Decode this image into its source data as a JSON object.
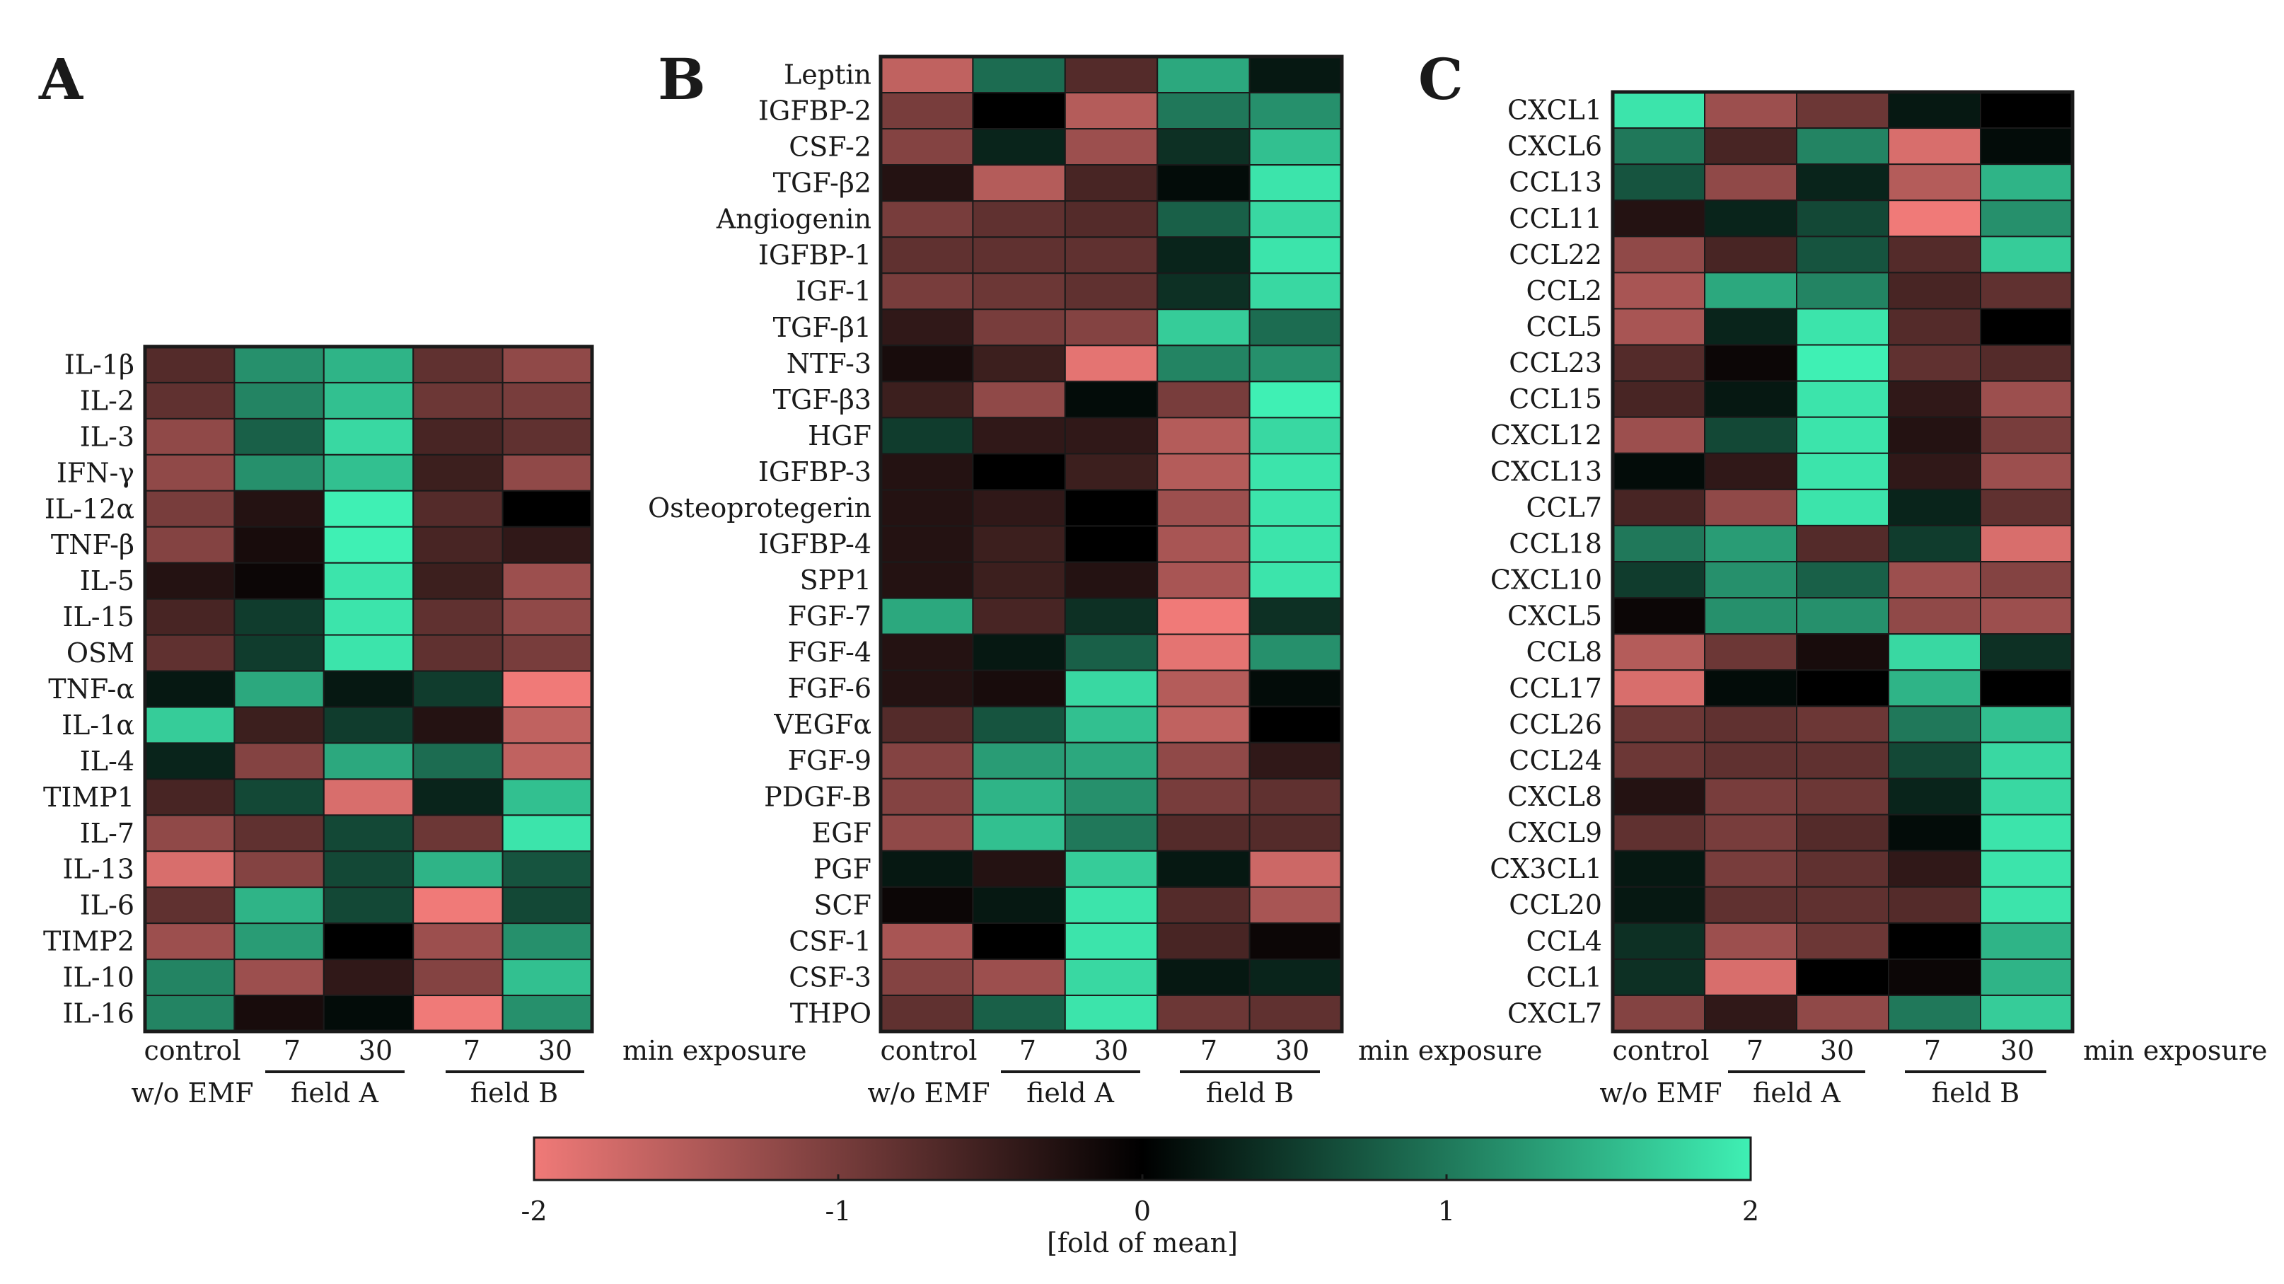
{
  "chart_data": [
    {
      "type": "heatmap",
      "panel": "A",
      "columns": [
        "control\nw/o EMF",
        "field A 7",
        "field A 30",
        "field B 7",
        "field B 30"
      ],
      "rows": [
        "IL-1β",
        "IL-2",
        "IL-3",
        "IFN-γ",
        "IL-12α",
        "TNF-β",
        "IL-5",
        "IL-15",
        "OSM",
        "TNF-α",
        "IL-1α",
        "IL-4",
        "TIMP1",
        "IL-7",
        "IL-13",
        "IL-6",
        "TIMP2",
        "IL-10",
        "IL-16"
      ],
      "values": [
        [
          -0.7,
          1.2,
          1.5,
          -0.8,
          -1.2
        ],
        [
          -0.8,
          1.1,
          1.6,
          -0.9,
          -1.0
        ],
        [
          -1.2,
          0.8,
          1.8,
          -0.6,
          -0.8
        ],
        [
          -1.2,
          1.2,
          1.6,
          -0.5,
          -1.2
        ],
        [
          -1.0,
          -0.3,
          2.0,
          -0.7,
          0.0
        ],
        [
          -1.1,
          -0.2,
          2.0,
          -0.6,
          -0.4
        ],
        [
          -0.3,
          -0.1,
          1.9,
          -0.5,
          -1.3
        ],
        [
          -0.6,
          0.5,
          1.9,
          -0.8,
          -1.2
        ],
        [
          -0.8,
          0.5,
          1.9,
          -0.8,
          -1.0
        ],
        [
          0.2,
          1.4,
          0.2,
          0.5,
          -2.0
        ],
        [
          1.7,
          -0.5,
          0.5,
          -0.3,
          -1.6
        ],
        [
          0.3,
          -1.1,
          1.4,
          0.9,
          -1.6
        ],
        [
          -0.6,
          0.6,
          -1.8,
          0.3,
          1.6
        ],
        [
          -1.2,
          -0.8,
          0.6,
          -0.9,
          1.9
        ],
        [
          -1.8,
          -1.1,
          0.6,
          1.5,
          0.7
        ],
        [
          -0.8,
          1.5,
          0.6,
          -2.0,
          0.6
        ],
        [
          -1.3,
          1.3,
          0.0,
          -1.3,
          1.2
        ],
        [
          1.1,
          -1.3,
          -0.4,
          -1.1,
          1.6
        ],
        [
          1.1,
          -0.2,
          0.1,
          -2.0,
          1.2
        ]
      ]
    },
    {
      "type": "heatmap",
      "panel": "B",
      "columns": [
        "control\nw/o EMF",
        "field A 7",
        "field A 30",
        "field B 7",
        "field B 30"
      ],
      "rows": [
        "Leptin",
        "IGFBP-2",
        "CSF-2",
        "TGF-β2",
        "Angiogenin",
        "IGFBP-1",
        "IGF-1",
        "TGF-β1",
        "NTF-3",
        "TGF-β3",
        "HGF",
        "IGFBP-3",
        "Osteoprotegerin",
        "IGFBP-4",
        "SPP1",
        "FGF-7",
        "FGF-4",
        "FGF-6",
        "VEGFα",
        "FGF-9",
        "PDGF-B",
        "EGF",
        "PGF",
        "SCF",
        "CSF-1",
        "CSF-3",
        "THPO"
      ],
      "values": [
        [
          -1.6,
          0.9,
          -0.7,
          1.4,
          0.2
        ],
        [
          -1.0,
          0.0,
          -1.5,
          1.0,
          1.2
        ],
        [
          -1.1,
          0.3,
          -1.3,
          0.4,
          1.6
        ],
        [
          -0.3,
          -1.5,
          -0.6,
          0.1,
          1.9
        ],
        [
          -1.0,
          -0.8,
          -0.7,
          0.8,
          1.8
        ],
        [
          -0.8,
          -0.8,
          -0.8,
          0.3,
          1.9
        ],
        [
          -1.0,
          -0.9,
          -0.8,
          0.4,
          1.8
        ],
        [
          -0.4,
          -1.0,
          -1.1,
          1.7,
          0.9
        ],
        [
          -0.2,
          -0.5,
          -1.9,
          1.1,
          1.2
        ],
        [
          -0.5,
          -1.2,
          0.1,
          -1.0,
          2.0
        ],
        [
          0.5,
          -0.4,
          -0.4,
          -1.5,
          1.8
        ],
        [
          -0.3,
          0.0,
          -0.5,
          -1.5,
          1.9
        ],
        [
          -0.3,
          -0.4,
          0.0,
          -1.3,
          1.9
        ],
        [
          -0.3,
          -0.5,
          0.0,
          -1.4,
          1.9
        ],
        [
          -0.3,
          -0.5,
          -0.3,
          -1.4,
          1.9
        ],
        [
          1.4,
          -0.6,
          0.4,
          -2.0,
          0.4
        ],
        [
          -0.3,
          0.2,
          0.8,
          -1.9,
          1.2
        ],
        [
          -0.3,
          -0.2,
          1.8,
          -1.5,
          0.1
        ],
        [
          -0.7,
          0.7,
          1.6,
          -1.6,
          0.0
        ],
        [
          -1.1,
          1.3,
          1.4,
          -1.2,
          -0.4
        ],
        [
          -1.1,
          1.5,
          1.2,
          -1.0,
          -0.8
        ],
        [
          -1.2,
          1.6,
          1.0,
          -0.7,
          -0.7
        ],
        [
          0.2,
          -0.3,
          1.7,
          0.2,
          -1.7
        ],
        [
          -0.1,
          0.2,
          1.9,
          -0.7,
          -1.4
        ],
        [
          -1.4,
          0.0,
          1.9,
          -0.6,
          -0.1
        ],
        [
          -1.1,
          -1.3,
          1.8,
          0.2,
          0.3
        ],
        [
          -0.8,
          0.8,
          1.9,
          -0.9,
          -0.8
        ]
      ]
    },
    {
      "type": "heatmap",
      "panel": "C",
      "columns": [
        "control\nw/o EMF",
        "field A 7",
        "field A 30",
        "field B 7",
        "field B 30"
      ],
      "rows": [
        "CXCL1",
        "CXCL6",
        "CCL13",
        "CCL11",
        "CCL22",
        "CCL2",
        "CCL5",
        "CCL23",
        "CCL15",
        "CXCL12",
        "CXCL13",
        "CCL7",
        "CCL18",
        "CXCL10",
        "CXCL5",
        "CCL8",
        "CCL17",
        "CCL26",
        "CCL24",
        "CXCL8",
        "CXCL9",
        "CX3CL1",
        "CCL20",
        "CCL4",
        "CCL1",
        "CXCL7"
      ],
      "values": [
        [
          1.9,
          -1.3,
          -0.9,
          0.2,
          0.0
        ],
        [
          1.0,
          -0.6,
          1.1,
          -1.8,
          0.1
        ],
        [
          0.7,
          -1.2,
          0.3,
          -1.5,
          1.5
        ],
        [
          -0.3,
          0.3,
          0.6,
          -2.0,
          1.2
        ],
        [
          -1.2,
          -0.6,
          0.7,
          -0.7,
          1.7
        ],
        [
          -1.4,
          1.4,
          1.1,
          -0.6,
          -0.8
        ],
        [
          -1.4,
          0.3,
          1.9,
          -0.7,
          0.0
        ],
        [
          -0.7,
          -0.1,
          2.0,
          -0.8,
          -0.7
        ],
        [
          -0.6,
          0.2,
          1.9,
          -0.4,
          -1.3
        ],
        [
          -1.3,
          0.6,
          1.9,
          -0.3,
          -1.0
        ],
        [
          0.1,
          -0.4,
          1.9,
          -0.4,
          -1.3
        ],
        [
          -0.6,
          -1.2,
          1.9,
          0.3,
          -0.8
        ],
        [
          1.0,
          1.3,
          -0.7,
          0.5,
          -1.8
        ],
        [
          0.5,
          1.2,
          0.8,
          -1.3,
          -1.1
        ],
        [
          -0.1,
          1.2,
          1.2,
          -1.2,
          -1.3
        ],
        [
          -1.5,
          -0.9,
          -0.2,
          1.8,
          0.4
        ],
        [
          -1.8,
          0.1,
          0.0,
          1.5,
          0.0
        ],
        [
          -0.9,
          -0.8,
          -0.9,
          1.0,
          1.6
        ],
        [
          -0.9,
          -0.8,
          -0.8,
          0.6,
          1.8
        ],
        [
          -0.3,
          -1.0,
          -0.9,
          0.3,
          1.8
        ],
        [
          -0.8,
          -1.0,
          -0.7,
          0.1,
          1.9
        ],
        [
          0.2,
          -1.0,
          -0.8,
          -0.4,
          1.9
        ],
        [
          0.2,
          -0.8,
          -0.8,
          -0.7,
          1.9
        ],
        [
          0.4,
          -1.3,
          -0.9,
          0.0,
          1.5
        ],
        [
          0.4,
          -1.8,
          0.0,
          -0.1,
          1.5
        ],
        [
          -1.1,
          -0.4,
          -1.2,
          1.0,
          1.7
        ]
      ]
    }
  ],
  "labels": {
    "panel_a": "A",
    "panel_b": "B",
    "panel_c": "C",
    "control": "control",
    "without_emf": "w/o EMF",
    "t7": "7",
    "t30": "30",
    "field_a": "field A",
    "field_b": "field B",
    "min_exposure": "min exposure"
  },
  "colorbar": {
    "ticks": [
      "-2",
      "-1",
      "0",
      "1",
      "2"
    ],
    "label": "[fold of mean]",
    "low_color": "#f07a78",
    "mid_color": "#000000",
    "high_color": "#3ff0b4"
  }
}
